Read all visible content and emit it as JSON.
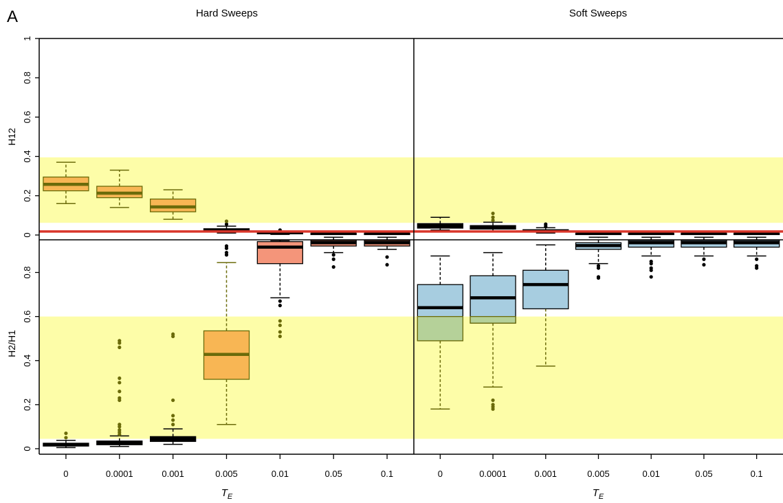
{
  "panel_label": "A",
  "colors": {
    "highlight": "#fdfda8",
    "hard_box_orange": "#f8b654",
    "hard_box_salmon": "#f4957a",
    "soft_box_blue": "#a7cde0",
    "olive": "#6b6b0a",
    "threshold_line": "#d9372b",
    "black": "#000000"
  },
  "chart_data": [
    {
      "type": "box",
      "id": "h12",
      "ylabel": "H12",
      "ylim": [
        0,
        1
      ],
      "yticks": [
        "0",
        "0.2",
        "0.4",
        "0.6",
        "0.8",
        "1"
      ],
      "highlight_band": [
        0.062,
        0.395
      ],
      "threshold_line": 0.018,
      "groups": [
        {
          "title": "Hard Sweeps",
          "xlabel": "T_E",
          "categories": [
            "0",
            "0.0001",
            "0.001",
            "0.005",
            "0.01",
            "0.05",
            "0.1"
          ],
          "boxes": [
            {
              "lw": 0.16,
              "q1": 0.225,
              "med": 0.258,
              "q3": 0.295,
              "uw": 0.37,
              "fill": "orange",
              "outliers": []
            },
            {
              "lw": 0.14,
              "q1": 0.19,
              "med": 0.213,
              "q3": 0.248,
              "uw": 0.33,
              "fill": "orange",
              "outliers": []
            },
            {
              "lw": 0.08,
              "q1": 0.118,
              "med": 0.143,
              "q3": 0.183,
              "uw": 0.23,
              "fill": "orange",
              "outliers": []
            },
            {
              "lw": 0.01,
              "q1": 0.02,
              "med": 0.025,
              "q3": 0.032,
              "uw": 0.045,
              "fill": "black",
              "outliers": [
                0.055,
                0.07
              ]
            },
            {
              "lw": 0.003,
              "q1": 0.008,
              "med": 0.01,
              "q3": 0.013,
              "uw": 0.018,
              "fill": "black",
              "outliers": [
                0.025
              ]
            },
            {
              "lw": 0.003,
              "q1": 0.005,
              "med": 0.007,
              "q3": 0.009,
              "uw": 0.012,
              "fill": "black",
              "outliers": []
            },
            {
              "lw": 0.003,
              "q1": 0.005,
              "med": 0.007,
              "q3": 0.009,
              "uw": 0.012,
              "fill": "black",
              "outliers": []
            }
          ]
        },
        {
          "title": "Soft Sweeps",
          "xlabel": "T_E",
          "categories": [
            "0",
            "0.0001",
            "0.001",
            "0.005",
            "0.01",
            "0.05",
            "0.1"
          ],
          "boxes": [
            {
              "lw": 0.025,
              "q1": 0.035,
              "med": 0.045,
              "q3": 0.058,
              "uw": 0.09,
              "fill": "black",
              "outliers": []
            },
            {
              "lw": 0.02,
              "q1": 0.03,
              "med": 0.038,
              "q3": 0.048,
              "uw": 0.065,
              "fill": "black",
              "outliers": [
                0.075,
                0.09,
                0.11
              ]
            },
            {
              "lw": 0.01,
              "q1": 0.016,
              "med": 0.021,
              "q3": 0.027,
              "uw": 0.037,
              "fill": "black",
              "outliers": [
                0.045,
                0.055
              ]
            },
            {
              "lw": 0.003,
              "q1": 0.005,
              "med": 0.007,
              "q3": 0.009,
              "uw": 0.012,
              "fill": "black",
              "outliers": []
            },
            {
              "lw": 0.003,
              "q1": 0.005,
              "med": 0.007,
              "q3": 0.009,
              "uw": 0.012,
              "fill": "black",
              "outliers": []
            },
            {
              "lw": 0.003,
              "q1": 0.005,
              "med": 0.007,
              "q3": 0.009,
              "uw": 0.012,
              "fill": "black",
              "outliers": []
            },
            {
              "lw": 0.003,
              "q1": 0.005,
              "med": 0.007,
              "q3": 0.009,
              "uw": 0.012,
              "fill": "black",
              "outliers": []
            }
          ]
        }
      ]
    },
    {
      "type": "box",
      "id": "h2h1",
      "ylabel": "H2/H1",
      "ylim": [
        0,
        0.97
      ],
      "yticks": [
        "0",
        "0.2",
        "0.4",
        "0.6",
        "0.8"
      ],
      "highlight_band": [
        0.045,
        0.6
      ],
      "groups": [
        {
          "title": "Hard Sweeps",
          "xlabel": "T_E",
          "categories": [
            "0",
            "0.0001",
            "0.001",
            "0.005",
            "0.01",
            "0.05",
            "0.1"
          ],
          "boxes": [
            {
              "lw": 0.005,
              "q1": 0.012,
              "med": 0.018,
              "q3": 0.025,
              "uw": 0.038,
              "fill": "black",
              "outliers": [
                0.05,
                0.07
              ]
            },
            {
              "lw": 0.01,
              "q1": 0.018,
              "med": 0.025,
              "q3": 0.035,
              "uw": 0.058,
              "fill": "black",
              "outliers": [
                0.065,
                0.075,
                0.085,
                0.1,
                0.11,
                0.22,
                0.23,
                0.26,
                0.3,
                0.32,
                0.46,
                0.48,
                0.49
              ]
            },
            {
              "lw": 0.02,
              "q1": 0.033,
              "med": 0.042,
              "q3": 0.055,
              "uw": 0.09,
              "fill": "black",
              "outliers": [
                0.11,
                0.13,
                0.15,
                0.22,
                0.51,
                0.52
              ]
            },
            {
              "lw": 0.11,
              "q1": 0.315,
              "med": 0.428,
              "q3": 0.535,
              "uw": 0.845,
              "fill": "orange",
              "outliers": [
                0.88,
                0.89,
                0.91,
                0.92
              ]
            },
            {
              "lw": 0.685,
              "q1": 0.84,
              "med": 0.915,
              "q3": 0.94,
              "uw": 0.945,
              "fill": "salmon",
              "outliers": [
                0.51,
                0.53,
                0.56,
                0.58,
                0.65,
                0.67
              ]
            },
            {
              "lw": 0.89,
              "q1": 0.92,
              "med": 0.935,
              "q3": 0.945,
              "uw": 0.96,
              "fill": "salmon",
              "outliers": [
                0.825,
                0.86,
                0.88
              ]
            },
            {
              "lw": 0.905,
              "q1": 0.92,
              "med": 0.935,
              "q3": 0.945,
              "uw": 0.96,
              "fill": "salmon",
              "outliers": [
                0.835,
                0.87
              ]
            }
          ]
        },
        {
          "title": "Soft Sweeps",
          "xlabel": "T_E",
          "categories": [
            "0",
            "0.0001",
            "0.001",
            "0.005",
            "0.01",
            "0.05",
            "0.1"
          ],
          "boxes": [
            {
              "lw": 0.18,
              "q1": 0.49,
              "med": 0.64,
              "q3": 0.745,
              "uw": 0.875,
              "fill": "blue",
              "outliers": []
            },
            {
              "lw": 0.28,
              "q1": 0.57,
              "med": 0.685,
              "q3": 0.785,
              "uw": 0.89,
              "fill": "blue",
              "outliers": [
                0.18,
                0.19,
                0.2,
                0.22
              ]
            },
            {
              "lw": 0.375,
              "q1": 0.635,
              "med": 0.745,
              "q3": 0.81,
              "uw": 0.925,
              "fill": "blue",
              "outliers": []
            },
            {
              "lw": 0.84,
              "q1": 0.905,
              "med": 0.922,
              "q3": 0.935,
              "uw": 0.96,
              "fill": "blue",
              "outliers": [
                0.78,
                0.775,
                0.82,
                0.83
              ]
            },
            {
              "lw": 0.875,
              "q1": 0.915,
              "med": 0.935,
              "q3": 0.945,
              "uw": 0.96,
              "fill": "blue",
              "outliers": [
                0.78,
                0.81,
                0.82,
                0.84,
                0.85
              ]
            },
            {
              "lw": 0.875,
              "q1": 0.915,
              "med": 0.935,
              "q3": 0.945,
              "uw": 0.96,
              "fill": "blue",
              "outliers": [
                0.835,
                0.86
              ]
            },
            {
              "lw": 0.875,
              "q1": 0.915,
              "med": 0.935,
              "q3": 0.945,
              "uw": 0.96,
              "fill": "blue",
              "outliers": [
                0.82,
                0.83,
                0.86
              ]
            }
          ]
        }
      ]
    }
  ]
}
